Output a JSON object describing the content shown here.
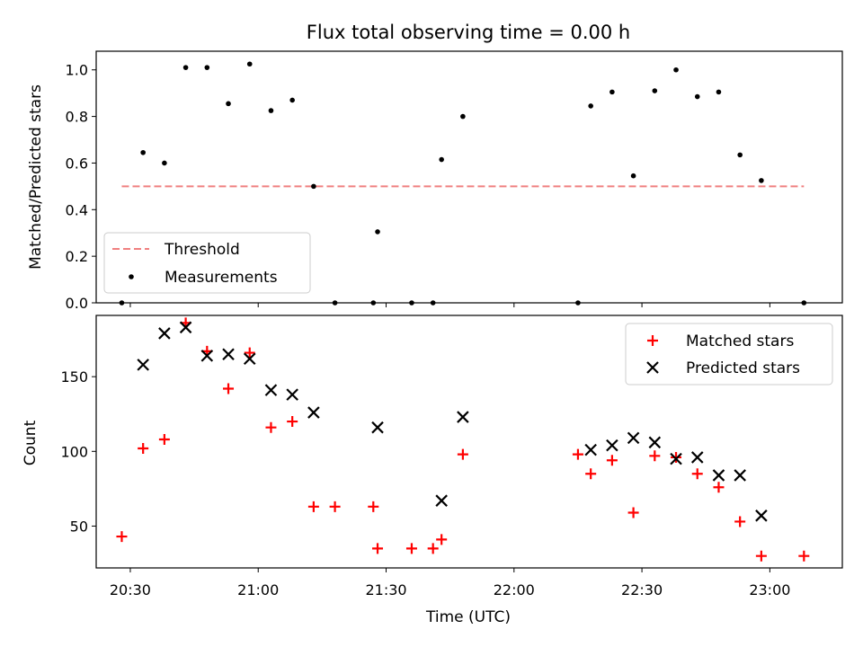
{
  "chart_data": [
    {
      "type": "scatter",
      "title": "Flux total observing time = 0.00 h",
      "ylabel": "Matched/Predicted stars",
      "xlabel": "",
      "ylim": [
        0,
        1.08
      ],
      "yticks": [
        "0.0",
        "0.2",
        "0.4",
        "0.6",
        "0.8",
        "1.0"
      ],
      "ytick_values": [
        0,
        0.2,
        0.4,
        0.6,
        0.8,
        1.0
      ],
      "xlim": [
        "20:22",
        "23:17"
      ],
      "legend_position": "lower-left",
      "threshold": {
        "name": "Threshold",
        "value": 0.5,
        "x_start": "20:28",
        "x_end": "23:08",
        "color": "#f08080"
      },
      "series": [
        {
          "name": "Measurements",
          "color": "#000000",
          "points": [
            [
              "20:28",
              0.0
            ],
            [
              "20:33",
              0.645
            ],
            [
              "20:38",
              0.6
            ],
            [
              "20:43",
              1.01
            ],
            [
              "20:48",
              1.01
            ],
            [
              "20:53",
              0.855
            ],
            [
              "20:58",
              1.025
            ],
            [
              "21:03",
              0.825
            ],
            [
              "21:08",
              0.87
            ],
            [
              "21:13",
              0.5
            ],
            [
              "21:18",
              0.0
            ],
            [
              "21:27",
              0.0
            ],
            [
              "21:28",
              0.305
            ],
            [
              "21:36",
              0.0
            ],
            [
              "21:41",
              0.0
            ],
            [
              "21:43",
              0.615
            ],
            [
              "21:48",
              0.8
            ],
            [
              "22:15",
              0.0
            ],
            [
              "22:18",
              0.845
            ],
            [
              "22:23",
              0.905
            ],
            [
              "22:28",
              0.545
            ],
            [
              "22:33",
              0.91
            ],
            [
              "22:38",
              1.0
            ],
            [
              "22:43",
              0.885
            ],
            [
              "22:48",
              0.905
            ],
            [
              "22:53",
              0.635
            ],
            [
              "22:58",
              0.525
            ],
            [
              "23:08",
              0.0
            ]
          ]
        }
      ]
    },
    {
      "type": "scatter",
      "title": "",
      "ylabel": "Count",
      "xlabel": "Time (UTC)",
      "ylim": [
        22,
        191
      ],
      "yticks": [
        "50",
        "100",
        "150"
      ],
      "ytick_values": [
        50,
        100,
        150
      ],
      "xlim": [
        "20:22",
        "23:17"
      ],
      "xticks": [
        "20:30",
        "21:00",
        "21:30",
        "22:00",
        "22:30",
        "23:00"
      ],
      "legend_position": "top-right",
      "series": [
        {
          "name": "Matched stars",
          "color": "#ff0000",
          "marker": "plus",
          "points": [
            [
              "20:28",
              43
            ],
            [
              "20:33",
              102
            ],
            [
              "20:38",
              108
            ],
            [
              "20:43",
              186
            ],
            [
              "20:48",
              167
            ],
            [
              "20:53",
              142
            ],
            [
              "20:58",
              166
            ],
            [
              "21:03",
              116
            ],
            [
              "21:08",
              120
            ],
            [
              "21:13",
              63
            ],
            [
              "21:18",
              63
            ],
            [
              "21:27",
              63
            ],
            [
              "21:28",
              35
            ],
            [
              "21:36",
              35
            ],
            [
              "21:41",
              35
            ],
            [
              "21:43",
              41
            ],
            [
              "21:48",
              98
            ],
            [
              "22:15",
              98
            ],
            [
              "22:18",
              85
            ],
            [
              "22:23",
              94
            ],
            [
              "22:28",
              59
            ],
            [
              "22:33",
              97
            ],
            [
              "22:38",
              96
            ],
            [
              "22:43",
              85
            ],
            [
              "22:48",
              76
            ],
            [
              "22:53",
              53
            ],
            [
              "22:58",
              30
            ],
            [
              "23:08",
              30
            ]
          ]
        },
        {
          "name": "Predicted stars",
          "color": "#000000",
          "marker": "x",
          "points": [
            [
              "20:33",
              158
            ],
            [
              "20:38",
              179
            ],
            [
              "20:43",
              183
            ],
            [
              "20:48",
              164
            ],
            [
              "20:53",
              165
            ],
            [
              "20:58",
              162
            ],
            [
              "21:03",
              141
            ],
            [
              "21:08",
              138
            ],
            [
              "21:13",
              126
            ],
            [
              "21:28",
              116
            ],
            [
              "21:43",
              67
            ],
            [
              "21:48",
              123
            ],
            [
              "22:18",
              101
            ],
            [
              "22:23",
              104
            ],
            [
              "22:28",
              109
            ],
            [
              "22:33",
              106
            ],
            [
              "22:38",
              95
            ],
            [
              "22:43",
              96
            ],
            [
              "22:48",
              84
            ],
            [
              "22:53",
              84
            ],
            [
              "22:58",
              57
            ]
          ]
        }
      ]
    }
  ]
}
